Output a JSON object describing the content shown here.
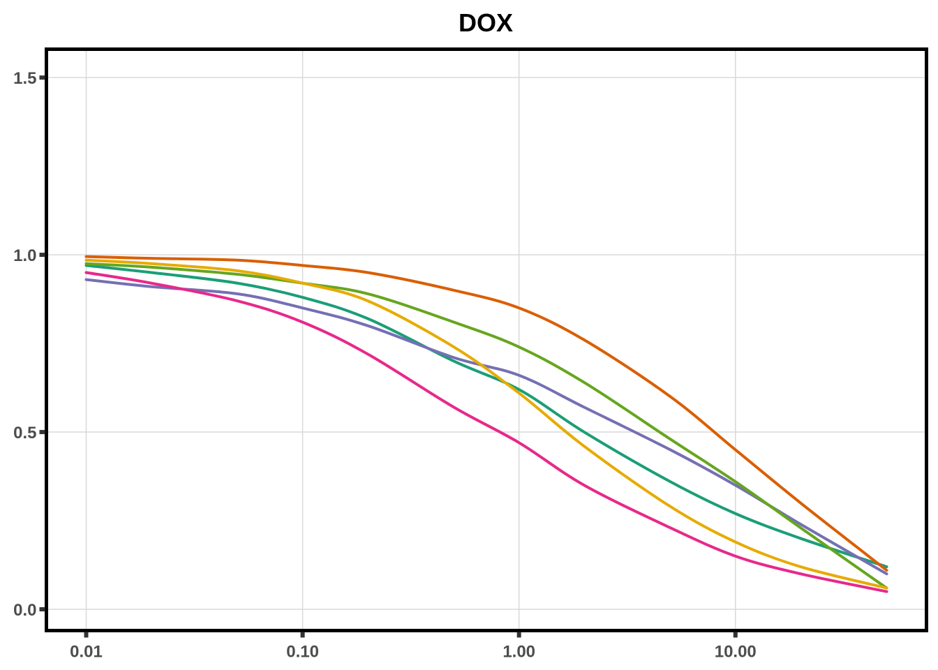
{
  "chart_data": {
    "type": "line",
    "title": "DOX",
    "xlabel": "",
    "ylabel": "",
    "x_scale": "log10",
    "xlim": [
      0.01,
      50
    ],
    "ylim": [
      -0.06,
      1.58
    ],
    "grid": true,
    "legend": "none",
    "x_ticks": [
      {
        "value": 0.01,
        "label": "0.01"
      },
      {
        "value": 0.1,
        "label": "0.10"
      },
      {
        "value": 1,
        "label": "1.00"
      },
      {
        "value": 10,
        "label": "10.00"
      }
    ],
    "y_ticks": [
      {
        "value": 0,
        "label": "0.0"
      },
      {
        "value": 0.5,
        "label": "0.5"
      },
      {
        "value": 1.0,
        "label": "1.0"
      },
      {
        "value": 1.5,
        "label": "1.5"
      }
    ],
    "x": [
      0.01,
      0.02,
      0.05,
      0.1,
      0.2,
      0.5,
      1,
      2,
      5,
      10,
      20,
      50
    ],
    "series": [
      {
        "color": "#1b9e77",
        "values": [
          0.97,
          0.95,
          0.92,
          0.88,
          0.82,
          0.7,
          0.62,
          0.5,
          0.36,
          0.27,
          0.2,
          0.12
        ]
      },
      {
        "color": "#d95f02",
        "values": [
          0.995,
          0.99,
          0.985,
          0.97,
          0.95,
          0.9,
          0.85,
          0.76,
          0.6,
          0.45,
          0.3,
          0.11
        ]
      },
      {
        "color": "#7570b3",
        "values": [
          0.93,
          0.91,
          0.89,
          0.85,
          0.8,
          0.71,
          0.66,
          0.57,
          0.45,
          0.35,
          0.24,
          0.1
        ]
      },
      {
        "color": "#e7298a",
        "values": [
          0.95,
          0.92,
          0.87,
          0.81,
          0.72,
          0.57,
          0.47,
          0.35,
          0.23,
          0.15,
          0.1,
          0.05
        ]
      },
      {
        "color": "#66a61e",
        "values": [
          0.975,
          0.965,
          0.945,
          0.92,
          0.89,
          0.81,
          0.74,
          0.64,
          0.48,
          0.36,
          0.23,
          0.06
        ]
      },
      {
        "color": "#e6ab02",
        "values": [
          0.985,
          0.975,
          0.955,
          0.92,
          0.87,
          0.74,
          0.61,
          0.46,
          0.29,
          0.19,
          0.12,
          0.06
        ]
      }
    ]
  }
}
